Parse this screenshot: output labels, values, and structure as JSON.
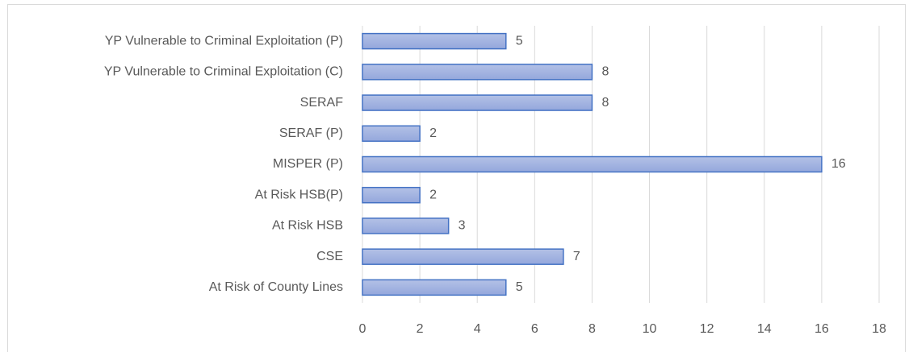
{
  "chart_data": {
    "type": "bar",
    "orientation": "horizontal",
    "categories": [
      "YP Vulnerable to Criminal Exploitation (P)",
      "YP Vulnerable to Criminal Exploitation (C)",
      "SERAF",
      "SERAF (P)",
      "MISPER (P)",
      "At Risk HSB(P)",
      "At Risk HSB",
      "CSE",
      "At Risk of County Lines"
    ],
    "values": [
      5,
      8,
      8,
      2,
      16,
      2,
      3,
      7,
      5
    ],
    "color": "#4472c4",
    "xlim": [
      0,
      18
    ],
    "xticks": [
      0,
      2,
      4,
      6,
      8,
      10,
      12,
      14,
      16,
      18
    ],
    "grid": true
  }
}
